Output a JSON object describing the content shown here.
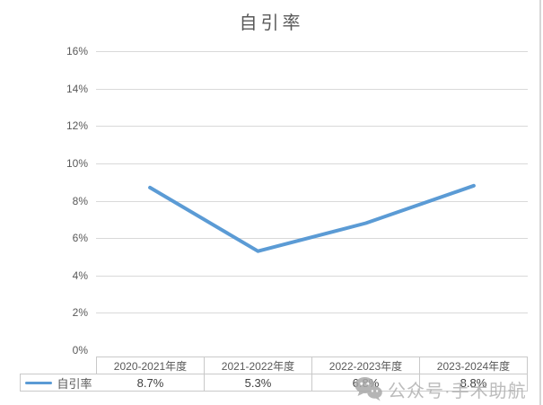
{
  "chart_data": {
    "type": "line",
    "title": "自引率",
    "categories": [
      "2020-2021年度",
      "2021-2022年度",
      "2022-2023年度",
      "2023-2024年度"
    ],
    "series": [
      {
        "name": "自引率",
        "values": [
          8.7,
          5.3,
          6.8,
          8.8
        ],
        "color": "#5B9BD5"
      }
    ],
    "value_labels": [
      "8.7%",
      "5.3%",
      "6.8%",
      "8.8%"
    ],
    "xlabel": "",
    "ylabel": "",
    "ylim": [
      0,
      16
    ],
    "ytick_step": 2,
    "ytick_labels": [
      "0%",
      "2%",
      "4%",
      "6%",
      "8%",
      "10%",
      "12%",
      "14%",
      "16%"
    ],
    "grid": true,
    "legend_position": "data-table-left",
    "data_table_shown": true
  },
  "watermark": {
    "icon": "wechat-icon",
    "text": "公众号·手术助航"
  },
  "colors": {
    "line": "#5B9BD5",
    "gridline": "#D9D9D9",
    "table_border": "#C9C9C9",
    "axis_text": "#595959",
    "title_text": "#595959",
    "value_text": "#404040",
    "watermark": "#B1B1B1",
    "right_edge_line": "#D6D6D6"
  }
}
